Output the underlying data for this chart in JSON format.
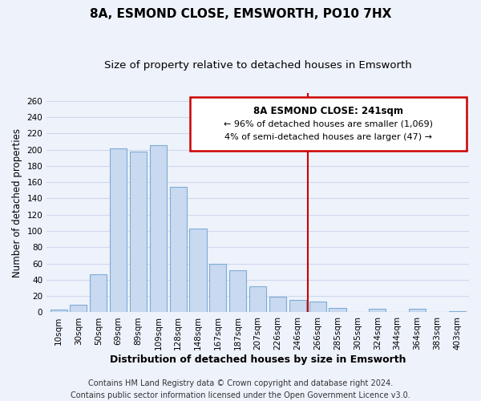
{
  "title": "8A, ESMOND CLOSE, EMSWORTH, PO10 7HX",
  "subtitle": "Size of property relative to detached houses in Emsworth",
  "xlabel": "Distribution of detached houses by size in Emsworth",
  "ylabel": "Number of detached properties",
  "bar_labels": [
    "10sqm",
    "30sqm",
    "50sqm",
    "69sqm",
    "89sqm",
    "109sqm",
    "128sqm",
    "148sqm",
    "167sqm",
    "187sqm",
    "207sqm",
    "226sqm",
    "246sqm",
    "266sqm",
    "285sqm",
    "305sqm",
    "324sqm",
    "344sqm",
    "364sqm",
    "383sqm",
    "403sqm"
  ],
  "bar_heights": [
    3,
    9,
    47,
    202,
    198,
    205,
    154,
    103,
    60,
    52,
    32,
    19,
    15,
    13,
    5,
    0,
    4,
    0,
    4,
    0,
    1
  ],
  "bar_color": "#c9d9f0",
  "bar_edge_color": "#7eacd4",
  "vline_color": "#cc0000",
  "vline_x": 12.5,
  "annotation_title": "8A ESMOND CLOSE: 241sqm",
  "annotation_line1": "← 96% of detached houses are smaller (1,069)",
  "annotation_line2": "4% of semi-detached houses are larger (47) →",
  "annotation_box_color": "#ffffff",
  "annotation_box_edge_color": "#cc0000",
  "ylim": [
    0,
    270
  ],
  "yticks": [
    0,
    20,
    40,
    60,
    80,
    100,
    120,
    140,
    160,
    180,
    200,
    220,
    240,
    260
  ],
  "footer_line1": "Contains HM Land Registry data © Crown copyright and database right 2024.",
  "footer_line2": "Contains public sector information licensed under the Open Government Licence v3.0.",
  "background_color": "#eef2fb",
  "grid_color": "#d0d8ee",
  "title_fontsize": 11,
  "subtitle_fontsize": 9.5,
  "xlabel_fontsize": 9,
  "ylabel_fontsize": 8.5,
  "tick_fontsize": 7.5,
  "footer_fontsize": 7,
  "ann_title_fontsize": 8.5,
  "ann_text_fontsize": 8
}
